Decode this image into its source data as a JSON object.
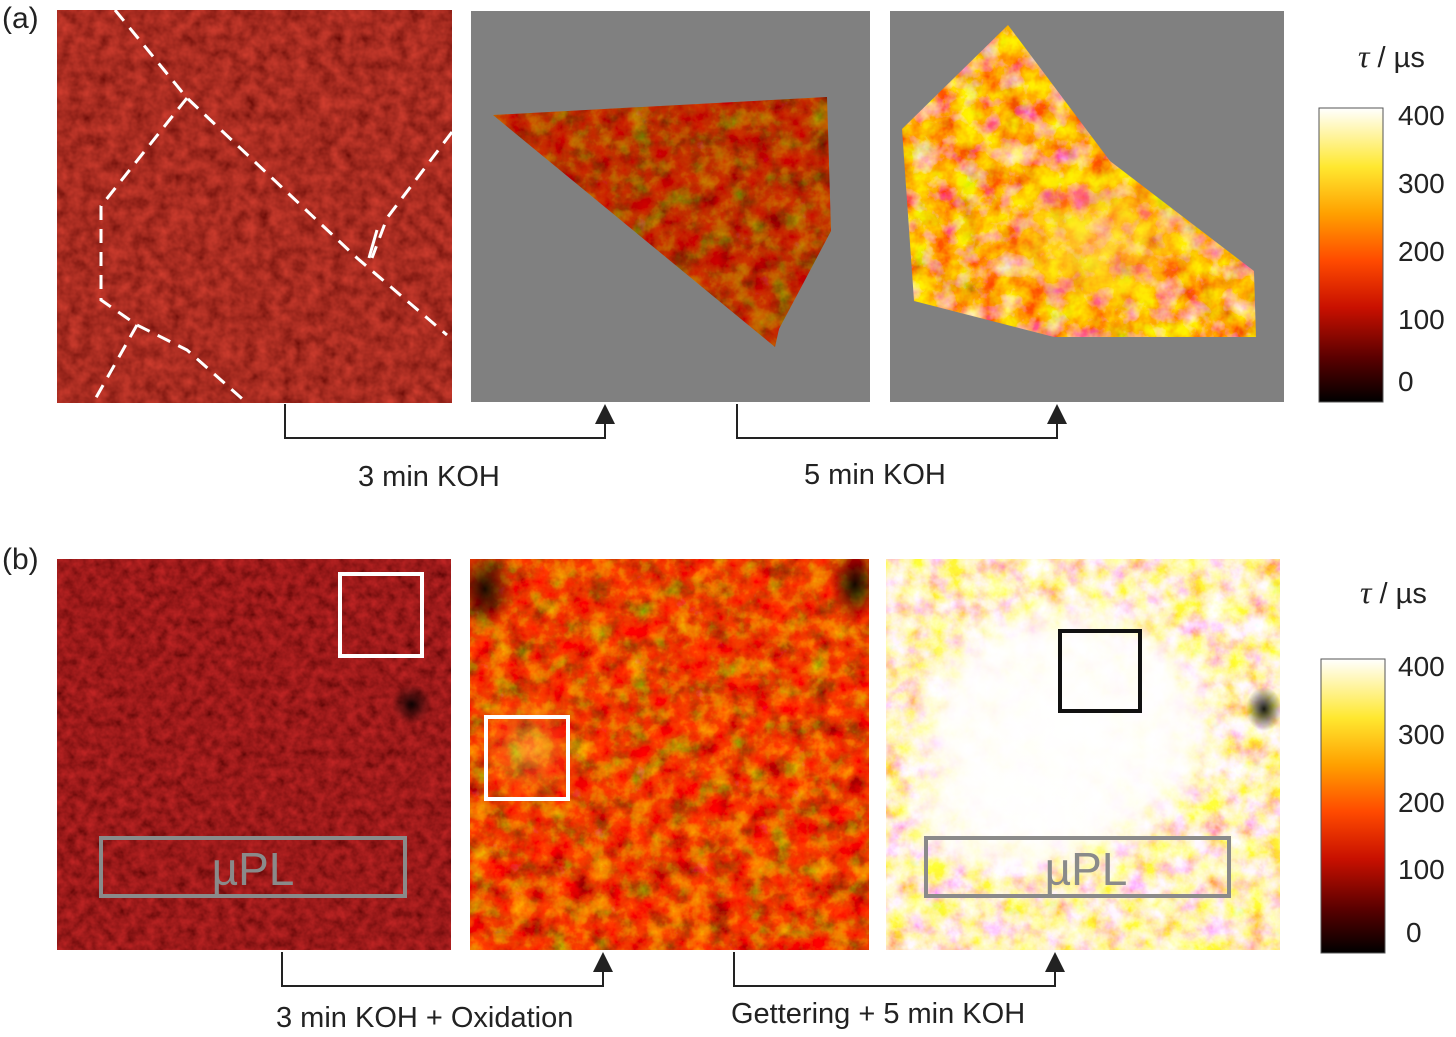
{
  "panel_a": {
    "label": "(a)",
    "arrow_labels": [
      "3 min KOH",
      "5 min KOH"
    ],
    "colorbar": {
      "title_symbol": "τ",
      "title_unit": " / µs",
      "ticks": [
        "400",
        "300",
        "200",
        "100",
        "0"
      ]
    }
  },
  "panel_b": {
    "label": "(b)",
    "arrow_labels": [
      "3 min KOH + Oxidation",
      "Gettering + 5 min KOH"
    ],
    "upl_labels": [
      "µPL",
      "µPL"
    ],
    "colorbar": {
      "title_symbol": "τ",
      "title_unit": " / µs",
      "ticks": [
        "400",
        "300",
        "200",
        "100",
        "0"
      ]
    }
  },
  "colors": {
    "background_gray": "#808080",
    "colormap": [
      "#000000",
      "#5a0000",
      "#c81000",
      "#ff4a00",
      "#ffa000",
      "#ffe830",
      "#ffffff"
    ]
  }
}
